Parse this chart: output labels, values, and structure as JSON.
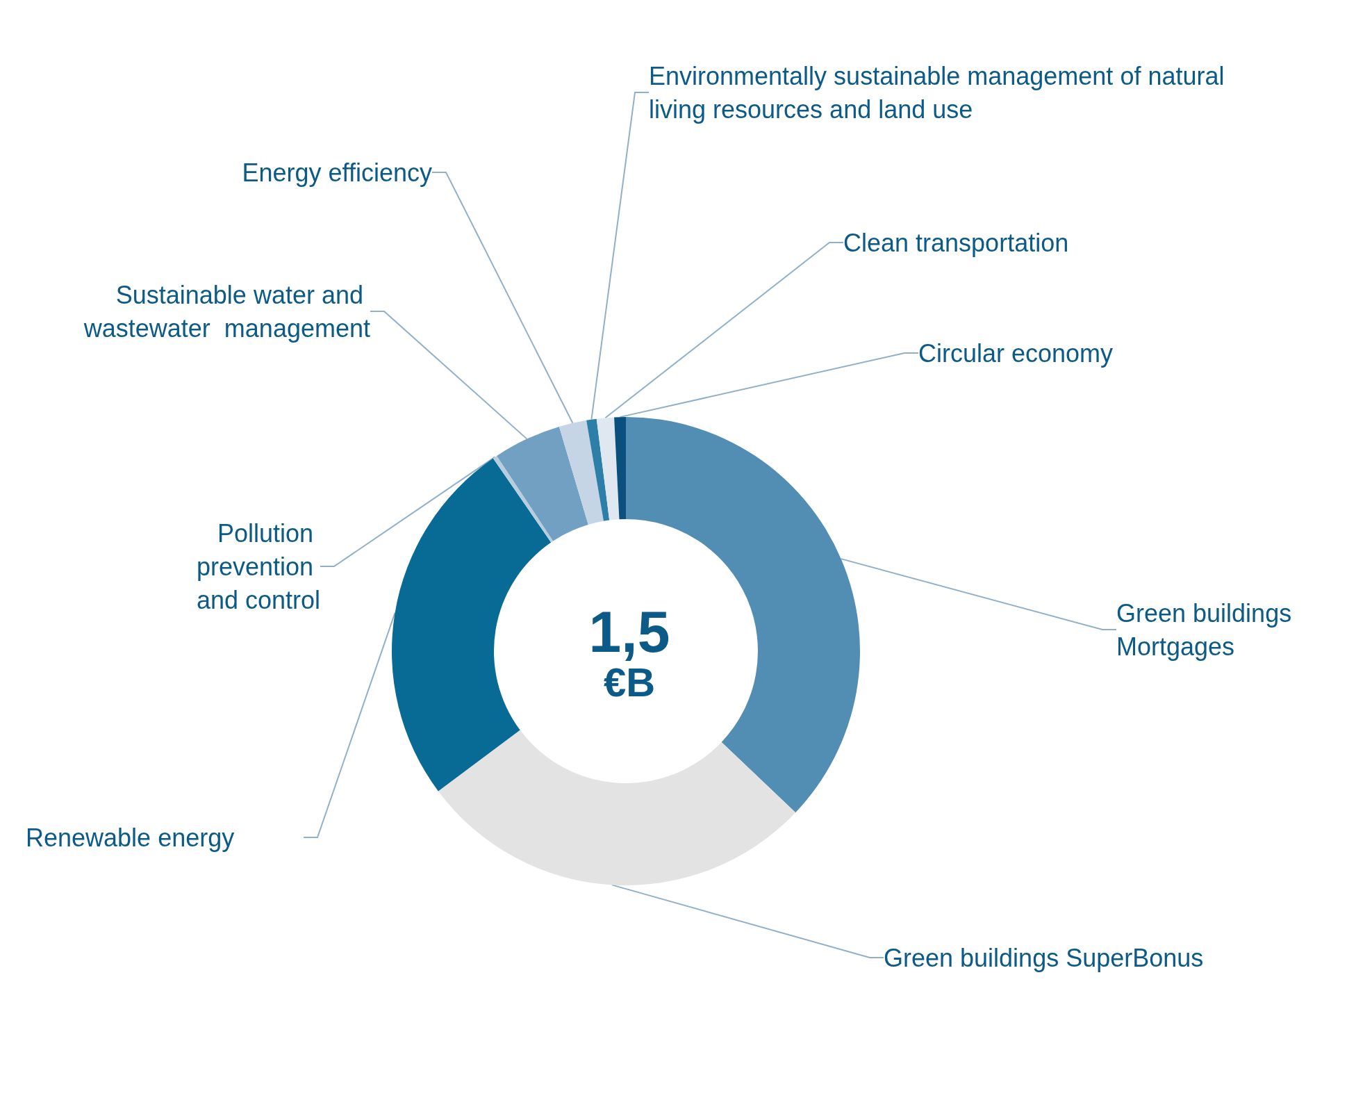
{
  "chart_data": {
    "type": "donut",
    "title": "1,5",
    "subtitle": "€B",
    "categories": [
      "Green buildings Mortgages",
      "Green buildings SuperBonus",
      "Renewable energy",
      "Pollution prevention and control",
      "Sustainable water and wastewater  management",
      "Energy efficiency",
      "Environmentally sustainable management of natural living resources and land use",
      "Clean transportation",
      "Circular economy"
    ],
    "values": [
      37.1,
      27.7,
      25.6,
      0.3,
      4.7,
      1.9,
      0.7,
      1.2,
      0.8
    ],
    "colors": [
      "#528db3",
      "#e3e3e3",
      "#086b96",
      "#b8cde0",
      "#71a0c2",
      "#c5d5e5",
      "#2d7fa8",
      "#dfe7f1",
      "#0b4f7c"
    ],
    "legend": false
  }
}
